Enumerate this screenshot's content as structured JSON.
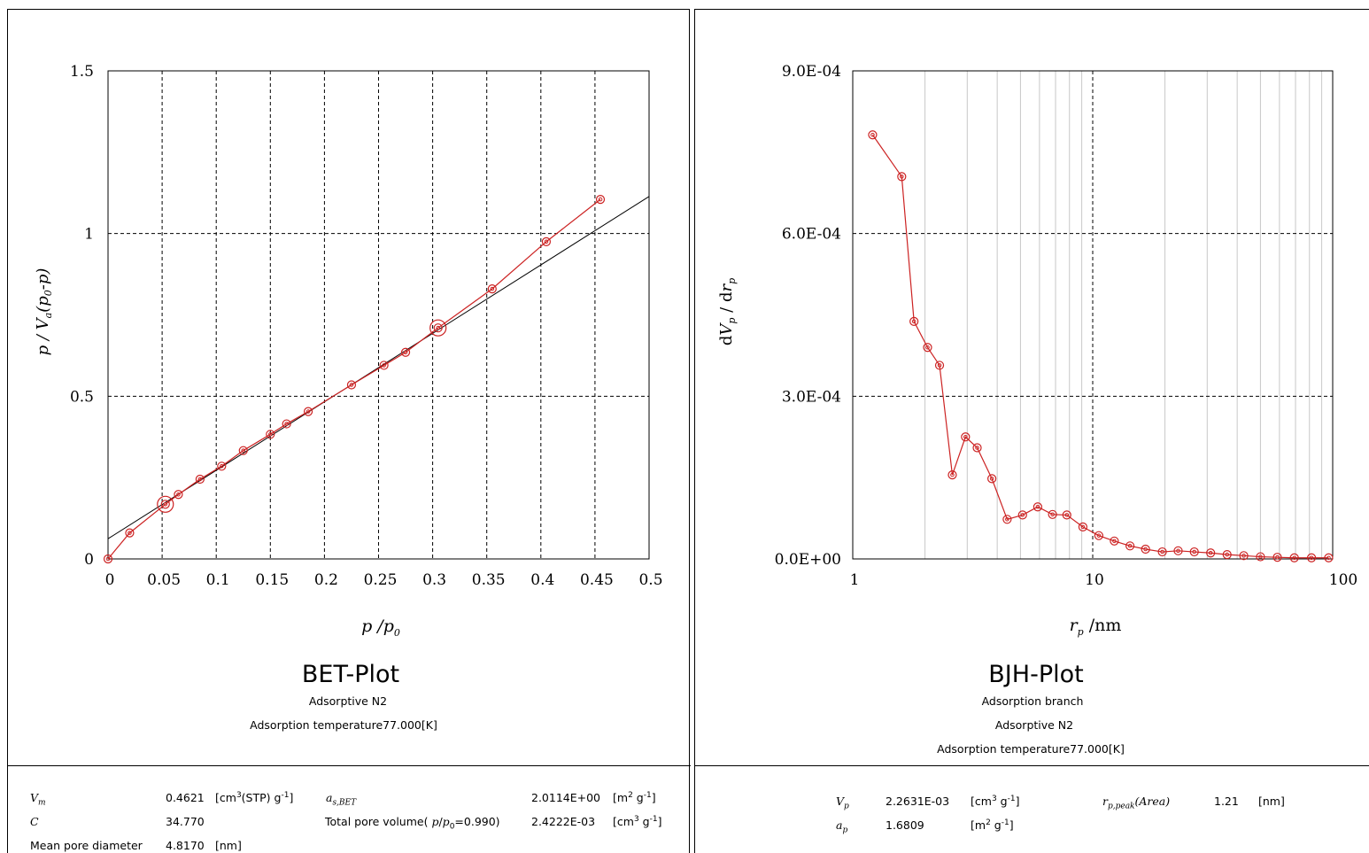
{
  "chart_data": [
    {
      "type": "line",
      "title": "BET-Plot",
      "subtitles": [
        "Adsorptive N2",
        "Adsorption temperature77.000[K]"
      ],
      "xlabel": "p /p0",
      "ylabel": "p / Va(p0-p)",
      "xlim": [
        0,
        0.5
      ],
      "ylim": [
        0,
        1.5
      ],
      "x_ticks": [
        "0",
        "0.05",
        "0.1",
        "0.15",
        "0.2",
        "0.25",
        "0.3",
        "0.35",
        "0.4",
        "0.45",
        "0.5"
      ],
      "y_ticks": [
        "0",
        "0.5",
        "1",
        "1.5"
      ],
      "grid": true,
      "series": [
        {
          "color": "#cc2222",
          "marker": "double-circle",
          "x": [
            0,
            0.02,
            0.053,
            0.065,
            0.085,
            0.105,
            0.125,
            0.15,
            0.165,
            0.185,
            0.225,
            0.255,
            0.275,
            0.305,
            0.355,
            0.405,
            0.455
          ],
          "y": [
            0,
            0.08,
            0.168,
            0.198,
            0.245,
            0.285,
            0.333,
            0.383,
            0.415,
            0.453,
            0.535,
            0.595,
            0.635,
            0.71,
            0.83,
            0.975,
            1.105
          ]
        },
        {
          "color": "#000000",
          "marker": "none",
          "x": [
            0,
            0.5
          ],
          "y": [
            0.062,
            1.114
          ]
        }
      ],
      "highlighted_points": [
        [
          0.053,
          0.168
        ],
        [
          0.305,
          0.71
        ]
      ]
    },
    {
      "type": "line",
      "title": "BJH-Plot",
      "subtitles": [
        "Adsorption branch",
        "Adsorptive N2",
        "Adsorption temperature77.000[K]"
      ],
      "xlabel": "rp /nm",
      "ylabel": "dVp / drp",
      "xscale": "log",
      "xlim": [
        1,
        100
      ],
      "ylim": [
        0,
        0.0009
      ],
      "x_ticks": [
        "1",
        "10",
        "100"
      ],
      "y_ticks": [
        "0.0E+00",
        "3.0E-04",
        "6.0E-04",
        "9.0E-04"
      ],
      "grid": true,
      "series": [
        {
          "color": "#cc2222",
          "marker": "double-circle",
          "x": [
            1.21,
            1.6,
            1.8,
            2.05,
            2.3,
            2.6,
            2.95,
            3.3,
            3.8,
            4.4,
            5.1,
            5.9,
            6.8,
            7.8,
            9.1,
            10.6,
            12.3,
            14.3,
            16.6,
            19.5,
            22.7,
            26.5,
            31,
            36.3,
            42.6,
            50,
            58.8,
            69.2,
            81.6,
            96.2
          ],
          "y": [
            0.000782,
            0.000705,
            0.000438,
            0.00039,
            0.000357,
            0.000155,
            0.000225,
            0.000205,
            0.000148,
            7.3e-05,
            8.1e-05,
            9.6e-05,
            8.2e-05,
            8.1e-05,
            5.9e-05,
            4.3e-05,
            3.3e-05,
            2.4e-05,
            1.8e-05,
            1.3e-05,
            1.5e-05,
            1.3e-05,
            1.1e-05,
            8e-06,
            6e-06,
            4e-06,
            3e-06,
            2e-06,
            2e-06,
            2e-06
          ]
        }
      ]
    }
  ],
  "results_bet": {
    "vm_label_main": "V",
    "vm_label_sub": "m",
    "vm_value": "0.4621",
    "vm_unit": "[cm3(STP) g-1]",
    "c_label": "C",
    "c_value": "34.770",
    "mpd_label": "Mean pore diameter",
    "mpd_value": "4.8170",
    "mpd_unit": "[nm]",
    "as_label_main": "a",
    "as_label_sub": "s,BET",
    "as_value": "2.0114E+00",
    "as_unit": "[m2 g-1]",
    "tpv_label": "Total pore volume( p/p0=0.990)",
    "tpv_value": "2.4222E-03",
    "tpv_unit": "[cm3 g-1]"
  },
  "results_bjh": {
    "vp_label_main": "V",
    "vp_label_sub": "p",
    "vp_value": "2.2631E-03",
    "vp_unit": "[cm3 g-1]",
    "ap_label_main": "a",
    "ap_label_sub": "p",
    "ap_value": "1.6809",
    "ap_unit": "[m2 g-1]",
    "rpeak_label_main": "r",
    "rpeak_label_sub": "p,peak",
    "rpeak_label_tail": "(Area)",
    "rpeak_value": "1.21",
    "rpeak_unit": "[nm]"
  }
}
